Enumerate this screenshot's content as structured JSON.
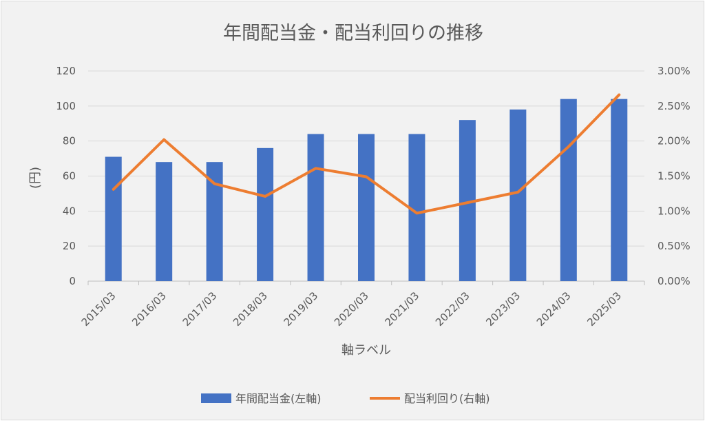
{
  "chart_data": {
    "type": "bar",
    "title": "年間配当金・配当利回りの推移",
    "xlabel": "軸ラベル",
    "ylabel": "(円)",
    "categories": [
      "2015/03",
      "2016/03",
      "2017/03",
      "2018/03",
      "2019/03",
      "2020/03",
      "2021/03",
      "2022/03",
      "2023/03",
      "2024/03",
      "2025/03"
    ],
    "ylim": [
      0,
      120
    ],
    "y_ticks": [
      "0",
      "20",
      "40",
      "60",
      "80",
      "100",
      "120"
    ],
    "y2lim": [
      0,
      0.03
    ],
    "y2_ticks": [
      "0.00%",
      "0.50%",
      "1.00%",
      "1.50%",
      "2.00%",
      "2.50%",
      "3.00%"
    ],
    "grid": true,
    "legend_position": "bottom",
    "series": [
      {
        "name": "年間配当金(左軸)",
        "type": "bar",
        "axis": "left",
        "color": "#4472c4",
        "values": [
          71,
          68,
          68,
          76,
          84,
          84,
          84,
          92,
          98,
          104,
          104
        ]
      },
      {
        "name": "配当利回り(右軸)",
        "type": "line",
        "axis": "right",
        "color": "#ed7d31",
        "values": [
          0.0131,
          0.0202,
          0.0139,
          0.0121,
          0.0161,
          0.0149,
          0.0097,
          0.0112,
          0.0127,
          0.0192,
          0.0266
        ]
      }
    ]
  }
}
